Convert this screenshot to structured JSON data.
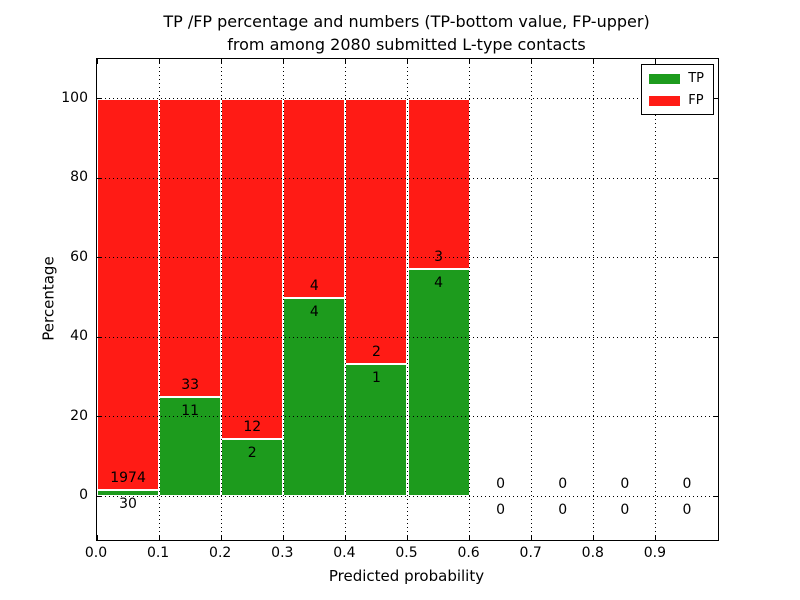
{
  "chart_data": {
    "type": "bar",
    "stacked": true,
    "title_line1": "TP /FP percentage and numbers (TP-bottom value, FP-upper)",
    "title_line2": "from among 2080 submitted L-type contacts",
    "xlabel": "Predicted probability",
    "ylabel": "Percentage",
    "total_contacts": 2080,
    "x_tick_labels": [
      "0.0",
      "0.1",
      "0.2",
      "0.3",
      "0.4",
      "0.5",
      "0.6",
      "0.7",
      "0.8",
      "0.9"
    ],
    "y_tick_labels": [
      "0",
      "20",
      "40",
      "60",
      "80",
      "100"
    ],
    "y_tick_values": [
      0,
      20,
      40,
      60,
      80,
      100
    ],
    "xlim": [
      0.0,
      1.0
    ],
    "ylim": [
      -11,
      110
    ],
    "grid": "dotted",
    "legend_position": "upper right",
    "legend": [
      {
        "label": "TP",
        "color": "#1d9b1d"
      },
      {
        "label": "FP",
        "color": "#ff1b15"
      }
    ],
    "bins": [
      {
        "x0": 0.0,
        "x1": 0.1,
        "tp": 30,
        "fp": 1974
      },
      {
        "x0": 0.1,
        "x1": 0.2,
        "tp": 11,
        "fp": 33
      },
      {
        "x0": 0.2,
        "x1": 0.3,
        "tp": 2,
        "fp": 12
      },
      {
        "x0": 0.3,
        "x1": 0.4,
        "tp": 4,
        "fp": 4
      },
      {
        "x0": 0.4,
        "x1": 0.5,
        "tp": 1,
        "fp": 2
      },
      {
        "x0": 0.5,
        "x1": 0.6,
        "tp": 4,
        "fp": 3
      },
      {
        "x0": 0.6,
        "x1": 0.7,
        "tp": 0,
        "fp": 0
      },
      {
        "x0": 0.7,
        "x1": 0.8,
        "tp": 0,
        "fp": 0
      },
      {
        "x0": 0.8,
        "x1": 0.9,
        "tp": 0,
        "fp": 0
      },
      {
        "x0": 0.9,
        "x1": 1.0,
        "tp": 0,
        "fp": 0
      }
    ],
    "colors": {
      "tp": "#1d9b1d",
      "fp": "#ff1b15",
      "bar_edge": "#ffffff",
      "grid": "#000000",
      "text": "#000000",
      "background": "#ffffff"
    }
  }
}
